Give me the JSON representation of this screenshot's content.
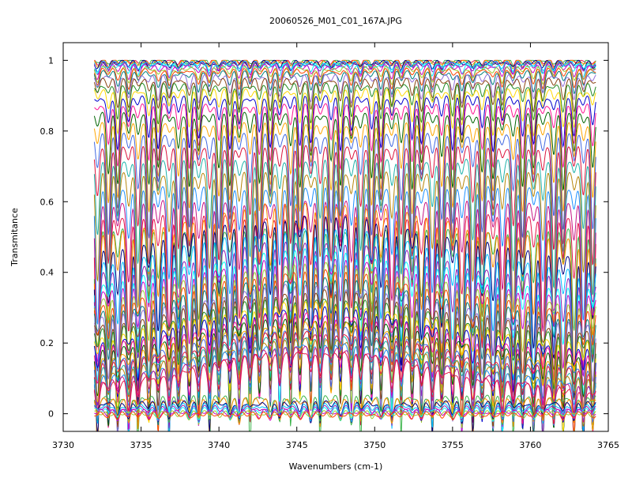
{
  "chart_data": {
    "type": "line",
    "title": "20060526_M01_C01_167A.JPG",
    "xlabel": "Wavenumbers (cm-1)",
    "ylabel": "Transmitance",
    "xlim": [
      3730,
      3765
    ],
    "ylim": [
      -0.05,
      1.05
    ],
    "x_ticks": [
      3730,
      3735,
      3740,
      3745,
      3750,
      3755,
      3760,
      3765
    ],
    "y_ticks": [
      0,
      0.2,
      0.4,
      0.6,
      0.8,
      1
    ],
    "y_tick_labels": [
      "0",
      "0.2",
      "0.4",
      "0.6",
      "0.8",
      "1"
    ],
    "x_tick_labels": [
      "3730",
      "3735",
      "3740",
      "3745",
      "3750",
      "3755",
      "3760",
      "3765"
    ],
    "grid": false,
    "legend": "none",
    "line_positions": [
      3732.2,
      3732.9,
      3733.5,
      3734.2,
      3734.8,
      3735.5,
      3736.1,
      3736.8,
      3737.4,
      3738.1,
      3738.7,
      3739.4,
      3740.0,
      3740.7,
      3741.3,
      3742.0,
      3742.6,
      3743.3,
      3743.9,
      3744.6,
      3745.2,
      3745.9,
      3746.5,
      3747.2,
      3747.8,
      3748.5,
      3749.1,
      3749.8,
      3750.4,
      3751.1,
      3751.7,
      3752.4,
      3753.0,
      3753.7,
      3754.3,
      3755.0,
      3755.6,
      3756.3,
      3756.9,
      3757.6,
      3758.2,
      3758.9,
      3759.5,
      3760.2,
      3760.8,
      3761.5,
      3762.1,
      3762.8,
      3763.4,
      3764.0
    ],
    "series_count": 60,
    "series_baselines": [
      0.999,
      0.998,
      0.997,
      0.995,
      0.993,
      0.99,
      0.987,
      0.983,
      0.978,
      0.972,
      0.965,
      0.955,
      0.944,
      0.93,
      0.914,
      0.895,
      0.873,
      0.848,
      0.82,
      0.789,
      0.755,
      0.718,
      0.68,
      0.64,
      0.6,
      0.56,
      0.52,
      0.48,
      0.44,
      0.405,
      0.37,
      0.345,
      0.325,
      0.305,
      0.285,
      0.265,
      0.245,
      0.228,
      0.21,
      0.195,
      0.18,
      0.165,
      0.15,
      0.138,
      0.125,
      0.112,
      0.1,
      0.088,
      0.077,
      0.066,
      0.056,
      0.047,
      0.039,
      0.031,
      0.024,
      0.018,
      0.012,
      0.007,
      0.003,
      0.0
    ],
    "series_colors": [
      "#e6194b",
      "#3cb44b",
      "#ff8c00",
      "#000080",
      "#00bfff",
      "#911eb4",
      "#00ffff",
      "#cc00cc",
      "#9acd32",
      "#ff4500",
      "#008080",
      "#9370db",
      "#8b4513",
      "#228b22",
      "#ffd700",
      "#0000cd",
      "#ff1493",
      "#006400",
      "#ffa500",
      "#4169e1",
      "#dc143c",
      "#20b2aa",
      "#b8860b",
      "#1e90ff",
      "#c71585"
    ]
  }
}
